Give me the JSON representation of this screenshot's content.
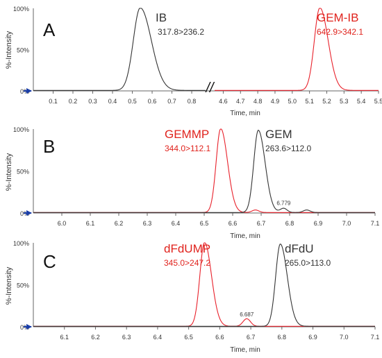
{
  "colors": {
    "black_trace": "#333333",
    "red_trace": "#e8202a",
    "red_text": "#e0221c",
    "axis": "#666666",
    "marker": "#1a3ea8"
  },
  "chart_data": [
    {
      "type": "line",
      "panel_letter": "A",
      "ylabel": "%-Intensity",
      "xlabel": "Time, min",
      "y_ticks": [
        "0%",
        "50%",
        "100%"
      ],
      "ylim": [
        0,
        100
      ],
      "segments": [
        {
          "xlim": [
            0.0,
            0.87
          ],
          "x_ticks": [
            "0.1",
            "0.2",
            "0.3",
            "0.4",
            "0.5",
            "0.6",
            "0.7",
            "0.8"
          ],
          "tick_values": [
            0.1,
            0.2,
            0.3,
            0.4,
            0.5,
            0.6,
            0.7,
            0.8
          ]
        },
        {
          "xlim": [
            4.55,
            5.5
          ],
          "x_ticks": [
            "4.6",
            "4.7",
            "4.8",
            "4.9",
            "5.0",
            "5.1",
            "5.2",
            "5.3",
            "5.4",
            "5.5"
          ],
          "tick_values": [
            4.6,
            4.7,
            4.8,
            4.9,
            5.0,
            5.1,
            5.2,
            5.3,
            5.4,
            5.5
          ]
        }
      ],
      "axis_break_symbol": "//",
      "series": [
        {
          "color": "#333333",
          "segment": 0,
          "peak_x": 0.54,
          "peak_y": 100,
          "sigma": 0.035,
          "tail": 0.6
        },
        {
          "color": "#e8202a",
          "segment": 1,
          "peak_x": 5.16,
          "peak_y": 100,
          "sigma": 0.032,
          "tail": 0.5
        }
      ],
      "annotations": [
        {
          "name": "IB",
          "transition": "317.8>236.2",
          "color": "#333333"
        },
        {
          "name": "GEM-IB",
          "transition": "642.9>342.1",
          "color": "#e0221c"
        }
      ]
    },
    {
      "type": "line",
      "panel_letter": "B",
      "ylabel": "%-Intensity",
      "xlabel": "Time, min",
      "y_ticks": [
        "0%",
        "50%",
        "100%"
      ],
      "ylim": [
        0,
        100
      ],
      "xlim": [
        5.9,
        7.1
      ],
      "x_ticks": [
        "6.0",
        "6.1",
        "6.2",
        "6.3",
        "6.4",
        "6.5",
        "6.6",
        "6.7",
        "6.8",
        "6.9",
        "7.0",
        "7.1"
      ],
      "tick_values": [
        6.0,
        6.1,
        6.2,
        6.3,
        6.4,
        6.5,
        6.6,
        6.7,
        6.8,
        6.9,
        7.0,
        7.1
      ],
      "series": [
        {
          "color": "#e8202a",
          "peak_x": 6.558,
          "peak_y": 100,
          "sigma": 0.016,
          "tail": 0.5,
          "minor": [
            [
              6.68,
              3
            ]
          ]
        },
        {
          "color": "#333333",
          "peak_x": 6.69,
          "peak_y": 98,
          "sigma": 0.016,
          "tail": 0.5,
          "minor": [
            [
              6.779,
              5
            ],
            [
              6.86,
              3
            ]
          ]
        }
      ],
      "peak_label": {
        "text": "6.779",
        "x": 6.779,
        "y": 6
      },
      "annotations": [
        {
          "name": "GEMMP",
          "transition": "344.0>112.1",
          "color": "#e0221c"
        },
        {
          "name": "GEM",
          "transition": "263.6>112.0",
          "color": "#333333"
        }
      ]
    },
    {
      "type": "line",
      "panel_letter": "C",
      "ylabel": "%-Intensity",
      "xlabel": "Time, min",
      "y_ticks": [
        "0%",
        "50%",
        "100%"
      ],
      "ylim": [
        0,
        100
      ],
      "xlim": [
        6.0,
        7.1
      ],
      "x_ticks": [
        "6.1",
        "6.2",
        "6.3",
        "6.4",
        "6.5",
        "6.6",
        "6.7",
        "6.8",
        "6.9",
        "7.0",
        "7.1"
      ],
      "tick_values": [
        6.1,
        6.2,
        6.3,
        6.4,
        6.5,
        6.6,
        6.7,
        6.8,
        6.9,
        7.0,
        7.1
      ],
      "series": [
        {
          "color": "#e8202a",
          "peak_x": 6.551,
          "peak_y": 100,
          "sigma": 0.015,
          "tail": 0.5,
          "minor": [
            [
              6.687,
              9
            ]
          ]
        },
        {
          "color": "#333333",
          "peak_x": 6.795,
          "peak_y": 98,
          "sigma": 0.015,
          "tail": 0.5,
          "minor": []
        }
      ],
      "peak_label": {
        "text": "6.687",
        "x": 6.687,
        "y": 9
      },
      "annotations": [
        {
          "name": "dFdUMP",
          "transition": "345.0>247.2",
          "color": "#e0221c"
        },
        {
          "name": "dFdU",
          "transition": "265.0>113.0",
          "color": "#333333"
        }
      ]
    }
  ]
}
